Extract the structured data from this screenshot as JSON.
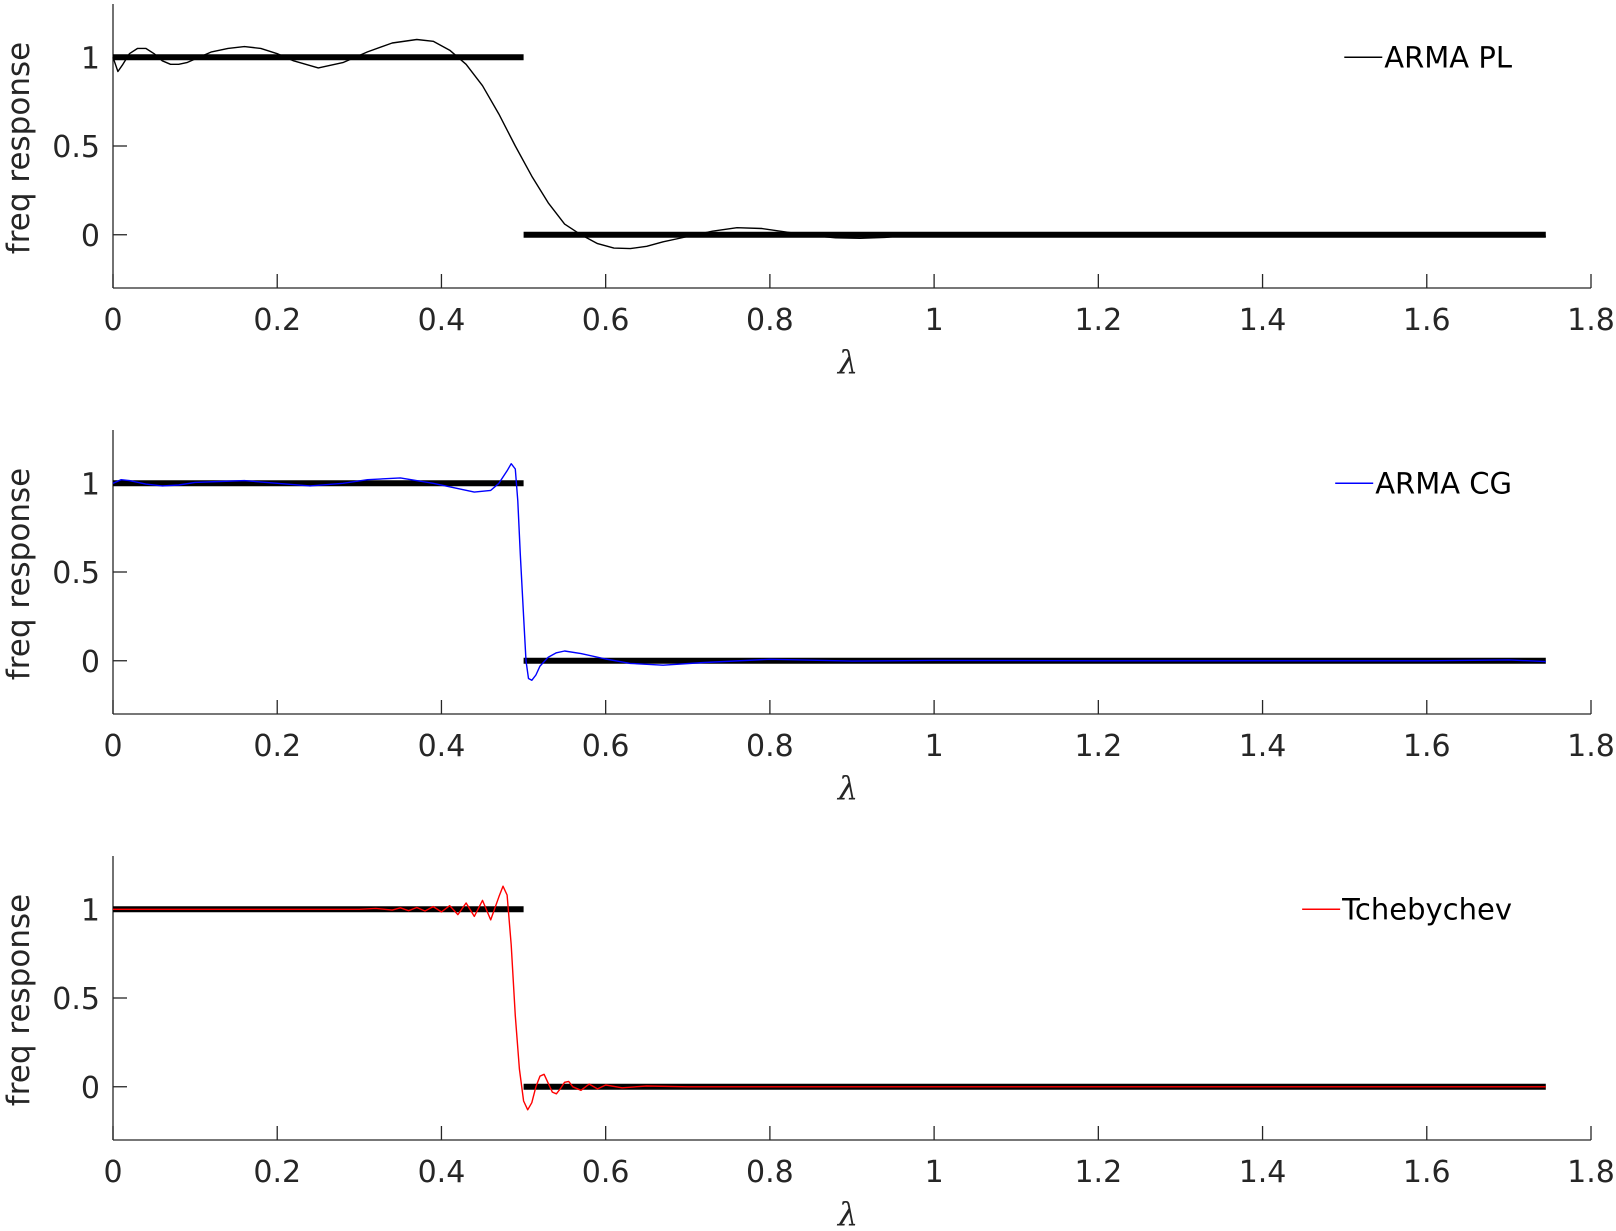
{
  "chart_data": [
    {
      "type": "line",
      "xlabel": "λ",
      "ylabel": "freq response",
      "xlim": [
        0,
        1.8
      ],
      "ylim": [
        -0.3,
        1.3
      ],
      "xticks": [
        "0",
        "0.2",
        "0.4",
        "0.6",
        "0.8",
        "1",
        "1.2",
        "1.4",
        "1.6",
        "1.8"
      ],
      "yticks": [
        "0",
        "0.5",
        "1"
      ],
      "legend_position": "top-right",
      "ideal_response": [
        {
          "x": [
            0,
            0.5
          ],
          "y": [
            1,
            1
          ]
        },
        {
          "x": [
            0.5,
            1.745
          ],
          "y": [
            0,
            0
          ]
        }
      ],
      "series": [
        {
          "name": "ARMA PL",
          "color": "#000000",
          "x": [
            0,
            0.006,
            0.012,
            0.02,
            0.03,
            0.04,
            0.05,
            0.06,
            0.07,
            0.08,
            0.09,
            0.1,
            0.12,
            0.14,
            0.16,
            0.18,
            0.2,
            0.22,
            0.25,
            0.28,
            0.31,
            0.34,
            0.37,
            0.39,
            0.41,
            0.43,
            0.45,
            0.47,
            0.49,
            0.51,
            0.53,
            0.55,
            0.57,
            0.59,
            0.61,
            0.63,
            0.65,
            0.67,
            0.7,
            0.73,
            0.76,
            0.79,
            0.82,
            0.85,
            0.88,
            0.91,
            0.94,
            0.97,
            1.0,
            1.05,
            1.1,
            1.15,
            1.2,
            1.3,
            1.4,
            1.5,
            1.6,
            1.7,
            1.72,
            1.745
          ],
          "y": [
            1.0,
            0.92,
            0.96,
            1.02,
            1.05,
            1.05,
            1.02,
            0.98,
            0.96,
            0.96,
            0.97,
            0.99,
            1.03,
            1.05,
            1.06,
            1.05,
            1.02,
            0.98,
            0.94,
            0.97,
            1.03,
            1.08,
            1.1,
            1.09,
            1.04,
            0.96,
            0.84,
            0.68,
            0.5,
            0.33,
            0.18,
            0.06,
            0.0,
            -0.05,
            -0.075,
            -0.078,
            -0.065,
            -0.04,
            -0.01,
            0.02,
            0.04,
            0.035,
            0.015,
            -0.005,
            -0.017,
            -0.02,
            -0.015,
            -0.005,
            0.005,
            0.01,
            0.008,
            0.0,
            -0.005,
            0.003,
            -0.002,
            0.002,
            0.0,
            0.0,
            0.01,
            -0.01
          ]
        },
        {
          "name": "ARMA CG",
          "color": "#0000ff",
          "x": [
            0,
            0.01,
            0.02,
            0.04,
            0.06,
            0.08,
            0.1,
            0.13,
            0.16,
            0.2,
            0.24,
            0.28,
            0.31,
            0.35,
            0.39,
            0.42,
            0.44,
            0.46,
            0.47,
            0.48,
            0.485,
            0.49,
            0.493,
            0.496,
            0.5,
            0.503,
            0.506,
            0.51,
            0.515,
            0.52,
            0.53,
            0.54,
            0.55,
            0.57,
            0.6,
            0.63,
            0.67,
            0.72,
            0.8,
            0.9,
            1.0,
            1.2,
            1.4,
            1.6,
            1.7,
            1.745
          ],
          "y": [
            1.0,
            1.02,
            1.015,
            0.995,
            0.985,
            0.99,
            1.005,
            1.01,
            1.015,
            1.0,
            0.985,
            1.0,
            1.02,
            1.03,
            1.0,
            0.97,
            0.95,
            0.96,
            1.0,
            1.07,
            1.11,
            1.08,
            0.9,
            0.6,
            0.25,
            0.0,
            -0.1,
            -0.11,
            -0.08,
            -0.03,
            0.02,
            0.045,
            0.055,
            0.04,
            0.01,
            -0.015,
            -0.025,
            -0.01,
            0.008,
            -0.002,
            0.002,
            0.0,
            0.0,
            0.0,
            0.005,
            -0.005
          ]
        },
        {
          "name": "Tchebychev",
          "color": "#ff0000",
          "x": [
            0,
            0.3,
            0.32,
            0.34,
            0.35,
            0.36,
            0.37,
            0.38,
            0.39,
            0.4,
            0.41,
            0.42,
            0.43,
            0.44,
            0.45,
            0.46,
            0.47,
            0.475,
            0.48,
            0.485,
            0.49,
            0.495,
            0.5,
            0.505,
            0.51,
            0.515,
            0.52,
            0.525,
            0.53,
            0.535,
            0.54,
            0.545,
            0.55,
            0.555,
            0.56,
            0.57,
            0.58,
            0.59,
            0.6,
            0.62,
            0.65,
            0.7,
            1.0,
            1.4,
            1.745
          ],
          "y": [
            1.0,
            1.0,
            1.005,
            0.995,
            1.008,
            0.992,
            1.01,
            0.99,
            1.015,
            0.985,
            1.02,
            0.97,
            1.035,
            0.96,
            1.05,
            0.94,
            1.07,
            1.13,
            1.08,
            0.8,
            0.4,
            0.1,
            -0.08,
            -0.13,
            -0.09,
            0.0,
            0.06,
            0.07,
            0.02,
            -0.03,
            -0.04,
            -0.01,
            0.025,
            0.03,
            0.0,
            -0.02,
            0.015,
            -0.012,
            0.01,
            -0.006,
            0.004,
            0.0,
            0.0,
            0.0,
            0.0
          ]
        }
      ]
    }
  ]
}
